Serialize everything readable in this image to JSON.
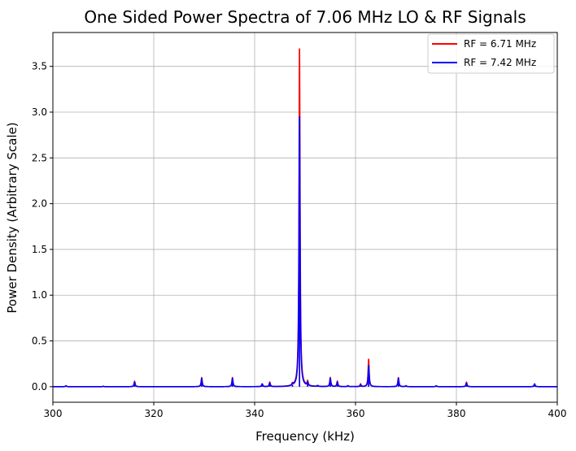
{
  "chart_data": {
    "type": "line",
    "title": "One Sided Power Spectra of 7.06 MHz LO & RF Signals",
    "xlabel": "Frequency (kHz)",
    "ylabel": "Power Density (Arbitrary Scale)",
    "xlim": [
      300,
      400
    ],
    "ylim": [
      -0.17,
      3.87
    ],
    "xticks": [
      300,
      320,
      340,
      360,
      380,
      400
    ],
    "yticks": [
      0.0,
      0.5,
      1.0,
      1.5,
      2.0,
      2.5,
      3.0,
      3.5
    ],
    "xtick_labels": [
      "300",
      "320",
      "340",
      "360",
      "380",
      "400"
    ],
    "ytick_labels": [
      "0.0",
      "0.5",
      "1.0",
      "1.5",
      "2.0",
      "2.5",
      "3.0",
      "3.5"
    ],
    "grid": true,
    "legend_position": "top-right",
    "series": [
      {
        "name": "RF = 6.71 MHz",
        "color": "#ff0000",
        "peaks": [
          {
            "x": 302.6,
            "y": 0.01
          },
          {
            "x": 310.0,
            "y": 0.005
          },
          {
            "x": 316.2,
            "y": 0.06
          },
          {
            "x": 329.5,
            "y": 0.1
          },
          {
            "x": 335.6,
            "y": 0.1
          },
          {
            "x": 341.5,
            "y": 0.03
          },
          {
            "x": 343.0,
            "y": 0.05
          },
          {
            "x": 347.5,
            "y": 0.02
          },
          {
            "x": 348.9,
            "y": 3.69
          },
          {
            "x": 350.5,
            "y": 0.05
          },
          {
            "x": 352.5,
            "y": 0.01
          },
          {
            "x": 355.0,
            "y": 0.1
          },
          {
            "x": 356.4,
            "y": 0.06
          },
          {
            "x": 358.5,
            "y": 0.01
          },
          {
            "x": 361.0,
            "y": 0.03
          },
          {
            "x": 362.6,
            "y": 0.3
          },
          {
            "x": 368.5,
            "y": 0.1
          },
          {
            "x": 370.0,
            "y": 0.01
          },
          {
            "x": 376.0,
            "y": 0.01
          },
          {
            "x": 382.0,
            "y": 0.05
          },
          {
            "x": 395.5,
            "y": 0.03
          }
        ]
      },
      {
        "name": "RF = 7.42 MHz",
        "color": "#0000ff",
        "peaks": [
          {
            "x": 302.6,
            "y": 0.01
          },
          {
            "x": 310.0,
            "y": 0.005
          },
          {
            "x": 316.2,
            "y": 0.05
          },
          {
            "x": 329.5,
            "y": 0.09
          },
          {
            "x": 335.6,
            "y": 0.09
          },
          {
            "x": 341.5,
            "y": 0.03
          },
          {
            "x": 343.0,
            "y": 0.04
          },
          {
            "x": 347.5,
            "y": 0.02
          },
          {
            "x": 348.9,
            "y": 2.95
          },
          {
            "x": 350.5,
            "y": 0.04
          },
          {
            "x": 352.5,
            "y": 0.01
          },
          {
            "x": 355.0,
            "y": 0.09
          },
          {
            "x": 356.4,
            "y": 0.05
          },
          {
            "x": 358.5,
            "y": 0.01
          },
          {
            "x": 361.0,
            "y": 0.02
          },
          {
            "x": 362.6,
            "y": 0.23
          },
          {
            "x": 368.5,
            "y": 0.09
          },
          {
            "x": 370.0,
            "y": 0.01
          },
          {
            "x": 376.0,
            "y": 0.01
          },
          {
            "x": 382.0,
            "y": 0.04
          },
          {
            "x": 395.5,
            "y": 0.03
          }
        ]
      }
    ]
  }
}
